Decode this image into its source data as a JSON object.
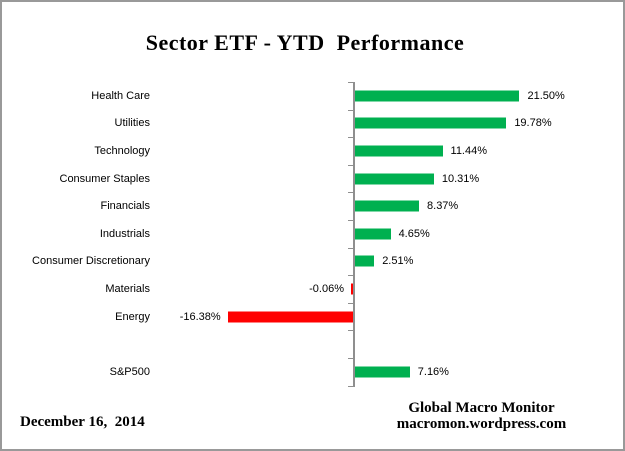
{
  "title": "Sector ETF - YTD  Performance",
  "footer": {
    "date": "December 16,  2014",
    "credit_line1": "Global Macro Monitor",
    "credit_line2": "macromon.wordpress.com"
  },
  "chart_data": {
    "type": "bar",
    "orientation": "horizontal",
    "title": "Sector ETF - YTD  Performance",
    "categories": [
      "Health Care",
      "Utilities",
      "Technology",
      "Consumer Staples",
      "Financials",
      "Industrials",
      "Consumer Discretionary",
      "Materials",
      "Energy",
      "",
      "S&P500"
    ],
    "values": [
      21.5,
      19.78,
      11.44,
      10.31,
      8.37,
      4.65,
      2.51,
      -0.06,
      -16.38,
      null,
      7.16
    ],
    "value_labels": [
      "21.50%",
      "19.78%",
      "11.44%",
      "10.31%",
      "8.37%",
      "4.65%",
      "2.51%",
      "-0.06%",
      "-16.38%",
      "",
      "7.16%"
    ],
    "unit": "%",
    "xlim": [
      -20,
      27
    ],
    "grid": false,
    "legend": false,
    "positive_color": "#00B050",
    "negative_color": "#FF0000",
    "axis_color": "#8F8F8F",
    "text_color": "#000000"
  }
}
